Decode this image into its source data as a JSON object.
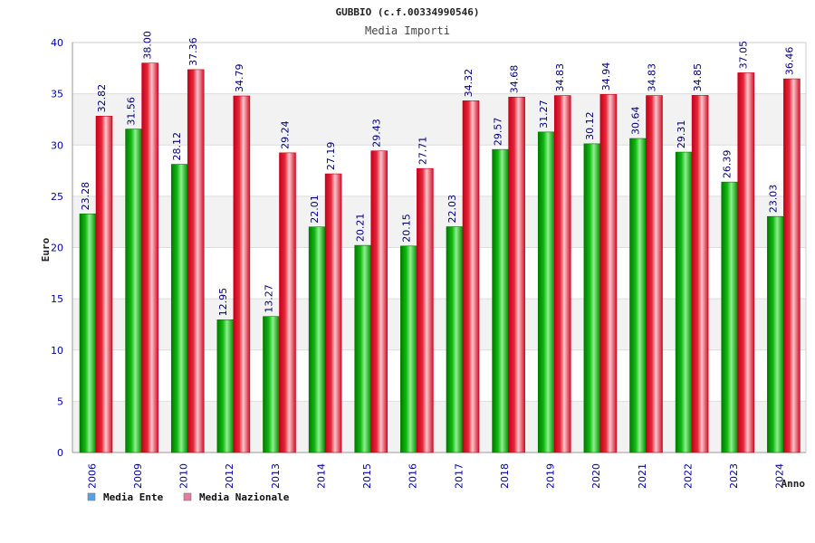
{
  "header": {
    "title": "GUBBIO (c.f.00334990546)",
    "subtitle": "Media Importi"
  },
  "colors": {
    "ente_fill": "#12b812",
    "ente_light": "#8ff08f",
    "ente_dark": "#007a00",
    "naz_fill": "#e4283a",
    "naz_light": "#ffc6cc",
    "naz_dark": "#c8001a",
    "legend_ente": "#5aa0e6",
    "legend_naz": "#e27d9f",
    "axis_text": "#0000aa",
    "label_text": "#00007a",
    "title_text": "#222222",
    "plot_band": "#f2f2f2",
    "grid": "#dddddd"
  },
  "chart_data": {
    "type": "bar",
    "title": "GUBBIO (c.f.00334990546)",
    "subtitle": "Media Importi",
    "xlabel": "Anno",
    "ylabel": "Euro",
    "ylim": [
      0,
      40
    ],
    "yticks": [
      0,
      5,
      10,
      15,
      20,
      25,
      30,
      35,
      40
    ],
    "grid": true,
    "legend_position": "bottom-left",
    "categories": [
      "2006",
      "2009",
      "2010",
      "2012",
      "2013",
      "2014",
      "2015",
      "2016",
      "2017",
      "2018",
      "2019",
      "2020",
      "2021",
      "2022",
      "2023",
      "2024"
    ],
    "series": [
      {
        "name": "Media Ente",
        "values": [
          23.28,
          31.56,
          28.12,
          12.95,
          13.27,
          22.01,
          20.21,
          20.15,
          22.03,
          29.57,
          31.27,
          30.12,
          30.64,
          29.31,
          26.39,
          23.03
        ],
        "labels": [
          "23.28",
          "31.56",
          "28.12",
          "12.95",
          "13.27",
          "22.01",
          "20.21",
          "20.15",
          "22.03",
          "29.57",
          "31.27",
          "30.12",
          "30.64",
          "29.31",
          "26.39",
          "23.03"
        ]
      },
      {
        "name": "Media Nazionale",
        "values": [
          32.82,
          38.0,
          37.36,
          34.79,
          29.24,
          27.19,
          29.43,
          27.71,
          34.32,
          34.68,
          34.83,
          34.94,
          34.83,
          34.85,
          37.05,
          36.46
        ],
        "labels": [
          "32.82",
          "38.00",
          "37.36",
          "34.79",
          "29.24",
          "27.19",
          "29.43",
          "27.71",
          "34.32",
          "34.68",
          "34.83",
          "34.94",
          "34.83",
          "34.85",
          "37.05",
          "36.46"
        ]
      }
    ]
  }
}
